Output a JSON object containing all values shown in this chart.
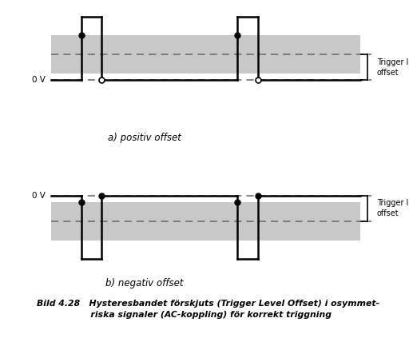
{
  "fig_width": 5.12,
  "fig_height": 4.33,
  "dpi": 100,
  "bg_color": "#ffffff",
  "gray_band_color": "#c8c8c8",
  "signal_color": "#000000",
  "dashed_color": "#666666",
  "dot_color": "#000000",
  "caption_line1": "Bild 4.28   Hysteresbandet förskjuts (Trigger Level Offset) i osymmet-",
  "caption_line2": "                  riska signaler (AC-koppling) för korrekt triggning",
  "label_a": "a) positiv offset",
  "label_b": "b) negativ offset",
  "trigger_label": "Trigger level\noffset",
  "zero_label": "0 V"
}
